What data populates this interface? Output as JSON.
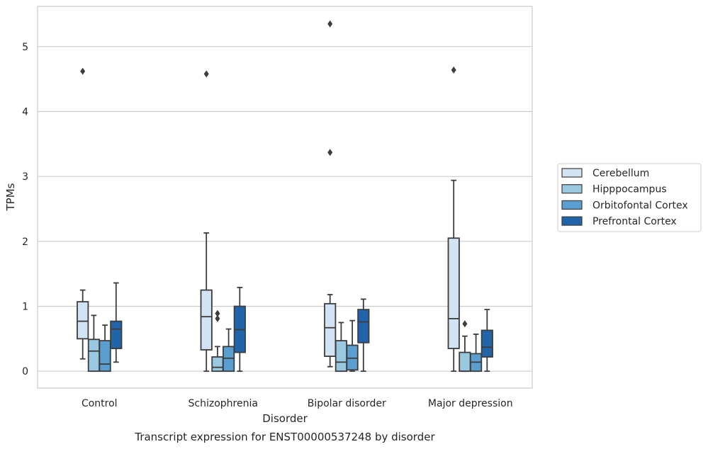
{
  "chart_data": {
    "type": "box",
    "title": "Transcript expression for ENST00000537248 by disorder",
    "xlabel": "Disorder",
    "ylabel": "TPMs",
    "ylim": [
      -0.26,
      5.62
    ],
    "yticks": [
      0,
      1,
      2,
      3,
      4,
      5
    ],
    "grid": "horizontal",
    "legend_position": "right",
    "categories": [
      "Control",
      "Schizophrenia",
      "Bipolar disorder",
      "Major depression"
    ],
    "series": [
      {
        "name": "Cerebellum",
        "color": "#d2e3f3",
        "boxes": [
          {
            "whisker_low": 0.19,
            "q1": 0.5,
            "median": 0.77,
            "q3": 1.07,
            "whisker_high": 1.25,
            "outliers": [
              4.62
            ]
          },
          {
            "whisker_low": 0.0,
            "q1": 0.33,
            "median": 0.84,
            "q3": 1.25,
            "whisker_high": 2.13,
            "outliers": [
              4.58
            ]
          },
          {
            "whisker_low": 0.07,
            "q1": 0.23,
            "median": 0.67,
            "q3": 1.04,
            "whisker_high": 1.18,
            "outliers": [
              3.37,
              5.35
            ]
          },
          {
            "whisker_low": 0.0,
            "q1": 0.35,
            "median": 0.81,
            "q3": 2.05,
            "whisker_high": 2.94,
            "outliers": [
              4.64
            ]
          }
        ]
      },
      {
        "name": "Hipppocampus",
        "color": "#9ac8e0",
        "boxes": [
          {
            "whisker_low": 0.0,
            "q1": 0.0,
            "median": 0.31,
            "q3": 0.49,
            "whisker_high": 0.86,
            "outliers": []
          },
          {
            "whisker_low": 0.0,
            "q1": 0.0,
            "median": 0.06,
            "q3": 0.22,
            "whisker_high": 0.38,
            "outliers": [
              0.81,
              0.89
            ]
          },
          {
            "whisker_low": 0.0,
            "q1": 0.0,
            "median": 0.14,
            "q3": 0.47,
            "whisker_high": 0.75,
            "outliers": []
          },
          {
            "whisker_low": 0.0,
            "q1": 0.0,
            "median": 0.0,
            "q3": 0.29,
            "whisker_high": 0.54,
            "outliers": [
              0.73
            ]
          }
        ]
      },
      {
        "name": "Orbitofontal Cortex",
        "color": "#5a9fcf",
        "boxes": [
          {
            "whisker_low": 0.0,
            "q1": 0.0,
            "median": 0.11,
            "q3": 0.47,
            "whisker_high": 0.71,
            "outliers": []
          },
          {
            "whisker_low": 0.0,
            "q1": 0.0,
            "median": 0.2,
            "q3": 0.38,
            "whisker_high": 0.65,
            "outliers": []
          },
          {
            "whisker_low": 0.0,
            "q1": 0.02,
            "median": 0.2,
            "q3": 0.4,
            "whisker_high": 0.78,
            "outliers": []
          },
          {
            "whisker_low": 0.0,
            "q1": 0.0,
            "median": 0.14,
            "q3": 0.27,
            "whisker_high": 0.57,
            "outliers": []
          }
        ]
      },
      {
        "name": "Prefrontal Cortex",
        "color": "#2264a9",
        "boxes": [
          {
            "whisker_low": 0.14,
            "q1": 0.35,
            "median": 0.65,
            "q3": 0.77,
            "whisker_high": 1.36,
            "outliers": []
          },
          {
            "whisker_low": 0.0,
            "q1": 0.29,
            "median": 0.64,
            "q3": 1.0,
            "whisker_high": 1.29,
            "outliers": []
          },
          {
            "whisker_low": 0.0,
            "q1": 0.44,
            "median": 0.76,
            "q3": 0.95,
            "whisker_high": 1.11,
            "outliers": []
          },
          {
            "whisker_low": 0.0,
            "q1": 0.22,
            "median": 0.37,
            "q3": 0.63,
            "whisker_high": 0.95,
            "outliers": []
          }
        ]
      }
    ]
  }
}
